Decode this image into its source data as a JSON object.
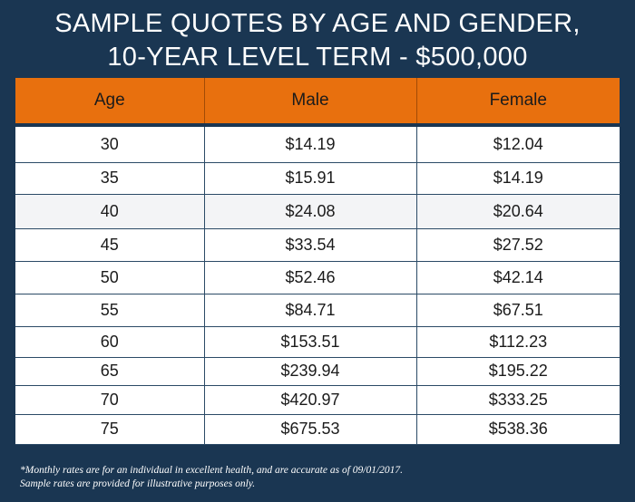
{
  "title": {
    "line1": "SAMPLE QUOTES BY AGE AND GENDER,",
    "line2": "10-YEAR LEVEL TERM - $500,000"
  },
  "table": {
    "headers": [
      "Age",
      "Male",
      "Female"
    ],
    "rows": [
      [
        "30",
        "$14.19",
        "$12.04"
      ],
      [
        "35",
        "$15.91",
        "$14.19"
      ],
      [
        "40",
        "$24.08",
        "$20.64"
      ],
      [
        "45",
        "$33.54",
        "$27.52"
      ],
      [
        "50",
        "$52.46",
        "$42.14"
      ],
      [
        "55",
        "$84.71",
        "$67.51"
      ],
      [
        "60",
        "$153.51",
        "$112.23"
      ],
      [
        "65",
        "$239.94",
        "$195.22"
      ],
      [
        "70",
        "$420.97",
        "$333.25"
      ],
      [
        "75",
        "$675.53",
        "$538.36"
      ]
    ]
  },
  "footnote": {
    "line1": "*Monthly rates are for an individual in excellent health, and are accurate as of 09/01/2017.",
    "line2": "Sample rates are provided for illustrative purposes only."
  },
  "colors": {
    "background": "#1a3652",
    "header": "#e8700e",
    "text": "#1b1b1b"
  }
}
